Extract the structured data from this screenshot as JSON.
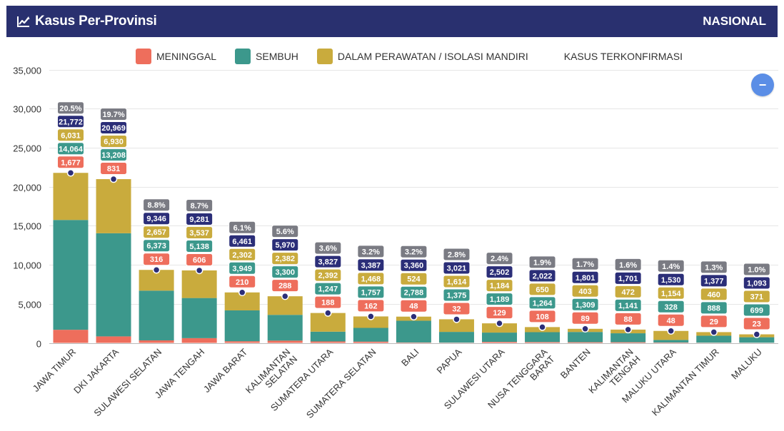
{
  "header": {
    "title": "Kasus Per-Provinsi",
    "scope": "NASIONAL",
    "icon": "line-chart-icon"
  },
  "colors": {
    "header_bg": "#29306f",
    "meninggal": "#ee6e5c",
    "sembuh": "#3c988c",
    "perawatan": "#c9ab3d",
    "konfirmasi_label": "#2b2e78",
    "percent_label": "#7a7b83",
    "dot": "#2b2e78"
  },
  "zoom_button": {
    "label": "−",
    "icon": "minus-icon"
  },
  "chart_data": {
    "type": "bar",
    "stacked": true,
    "categories": [
      "JAWA TIMUR",
      "DKI JAKARTA",
      "SULAWESI SELATAN",
      "JAWA TENGAH",
      "JAWA BARAT",
      "KALIMANTAN SELATAN",
      "SUMATERA UTARA",
      "SUMATERA SELATAN",
      "BALI",
      "PAPUA",
      "SULAWESI UTARA",
      "NUSA TENGGARA BARAT",
      "BANTEN",
      "KALIMANTAN TENGAH",
      "MALUKU UTARA",
      "KALIMANTAN TIMUR",
      "MALUKU"
    ],
    "category_lines": [
      [
        "JAWA TIMUR"
      ],
      [
        "DKI JAKARTA"
      ],
      [
        "SULAWESI SELATAN"
      ],
      [
        "JAWA TENGAH"
      ],
      [
        "JAWA BARAT"
      ],
      [
        "KALIMANTAN",
        "SELATAN"
      ],
      [
        "SUMATERA UTARA"
      ],
      [
        "SUMATERA SELATAN"
      ],
      [
        "BALI"
      ],
      [
        "PAPUA"
      ],
      [
        "SULAWESI UTARA"
      ],
      [
        "NUSA TENGGARA",
        "BARAT"
      ],
      [
        "BANTEN"
      ],
      [
        "KALIMANTAN",
        "TENGAH"
      ],
      [
        "MALUKU UTARA"
      ],
      [
        "KALIMANTAN TIMUR"
      ],
      [
        "MALUKU"
      ]
    ],
    "series": [
      {
        "name": "MENINGGAL",
        "key": "meninggal",
        "values": [
          1677,
          831,
          316,
          606,
          210,
          288,
          188,
          162,
          48,
          32,
          129,
          108,
          89,
          88,
          48,
          29,
          23
        ]
      },
      {
        "name": "SEMBUH",
        "key": "sembuh",
        "values": [
          14064,
          13208,
          6373,
          5138,
          3949,
          3300,
          1247,
          1757,
          2788,
          1375,
          1189,
          1264,
          1309,
          1141,
          328,
          888,
          699
        ]
      },
      {
        "name": "DALAM PERAWATAN / ISOLASI MANDIRI",
        "key": "perawatan",
        "values": [
          6031,
          6930,
          2657,
          3537,
          2302,
          2382,
          2392,
          1468,
          524,
          1614,
          1184,
          650,
          403,
          472,
          1154,
          460,
          371
        ]
      },
      {
        "name": "KASUS TERKONFIRMASI",
        "key": "konfirmasi",
        "type": "point",
        "values": [
          21772,
          20969,
          9346,
          9281,
          6461,
          5970,
          3827,
          3387,
          3360,
          3021,
          2502,
          2022,
          1801,
          1701,
          1530,
          1377,
          1093
        ]
      }
    ],
    "percent_labels": [
      "20.5%",
      "19.7%",
      "8.8%",
      "8.7%",
      "6.1%",
      "5.6%",
      "3.6%",
      "3.2%",
      "3.2%",
      "2.8%",
      "2.4%",
      "1.9%",
      "1.7%",
      "1.6%",
      "1.4%",
      "1.3%",
      "1.0%"
    ],
    "ylim": [
      0,
      35000
    ],
    "yticks": [
      0,
      5000,
      10000,
      15000,
      20000,
      25000,
      30000,
      35000
    ],
    "ytick_labels": [
      "0",
      "5,000",
      "10,000",
      "15,000",
      "20,000",
      "25,000",
      "30,000",
      "35,000"
    ],
    "grid": true,
    "legend_position": "top-center"
  }
}
